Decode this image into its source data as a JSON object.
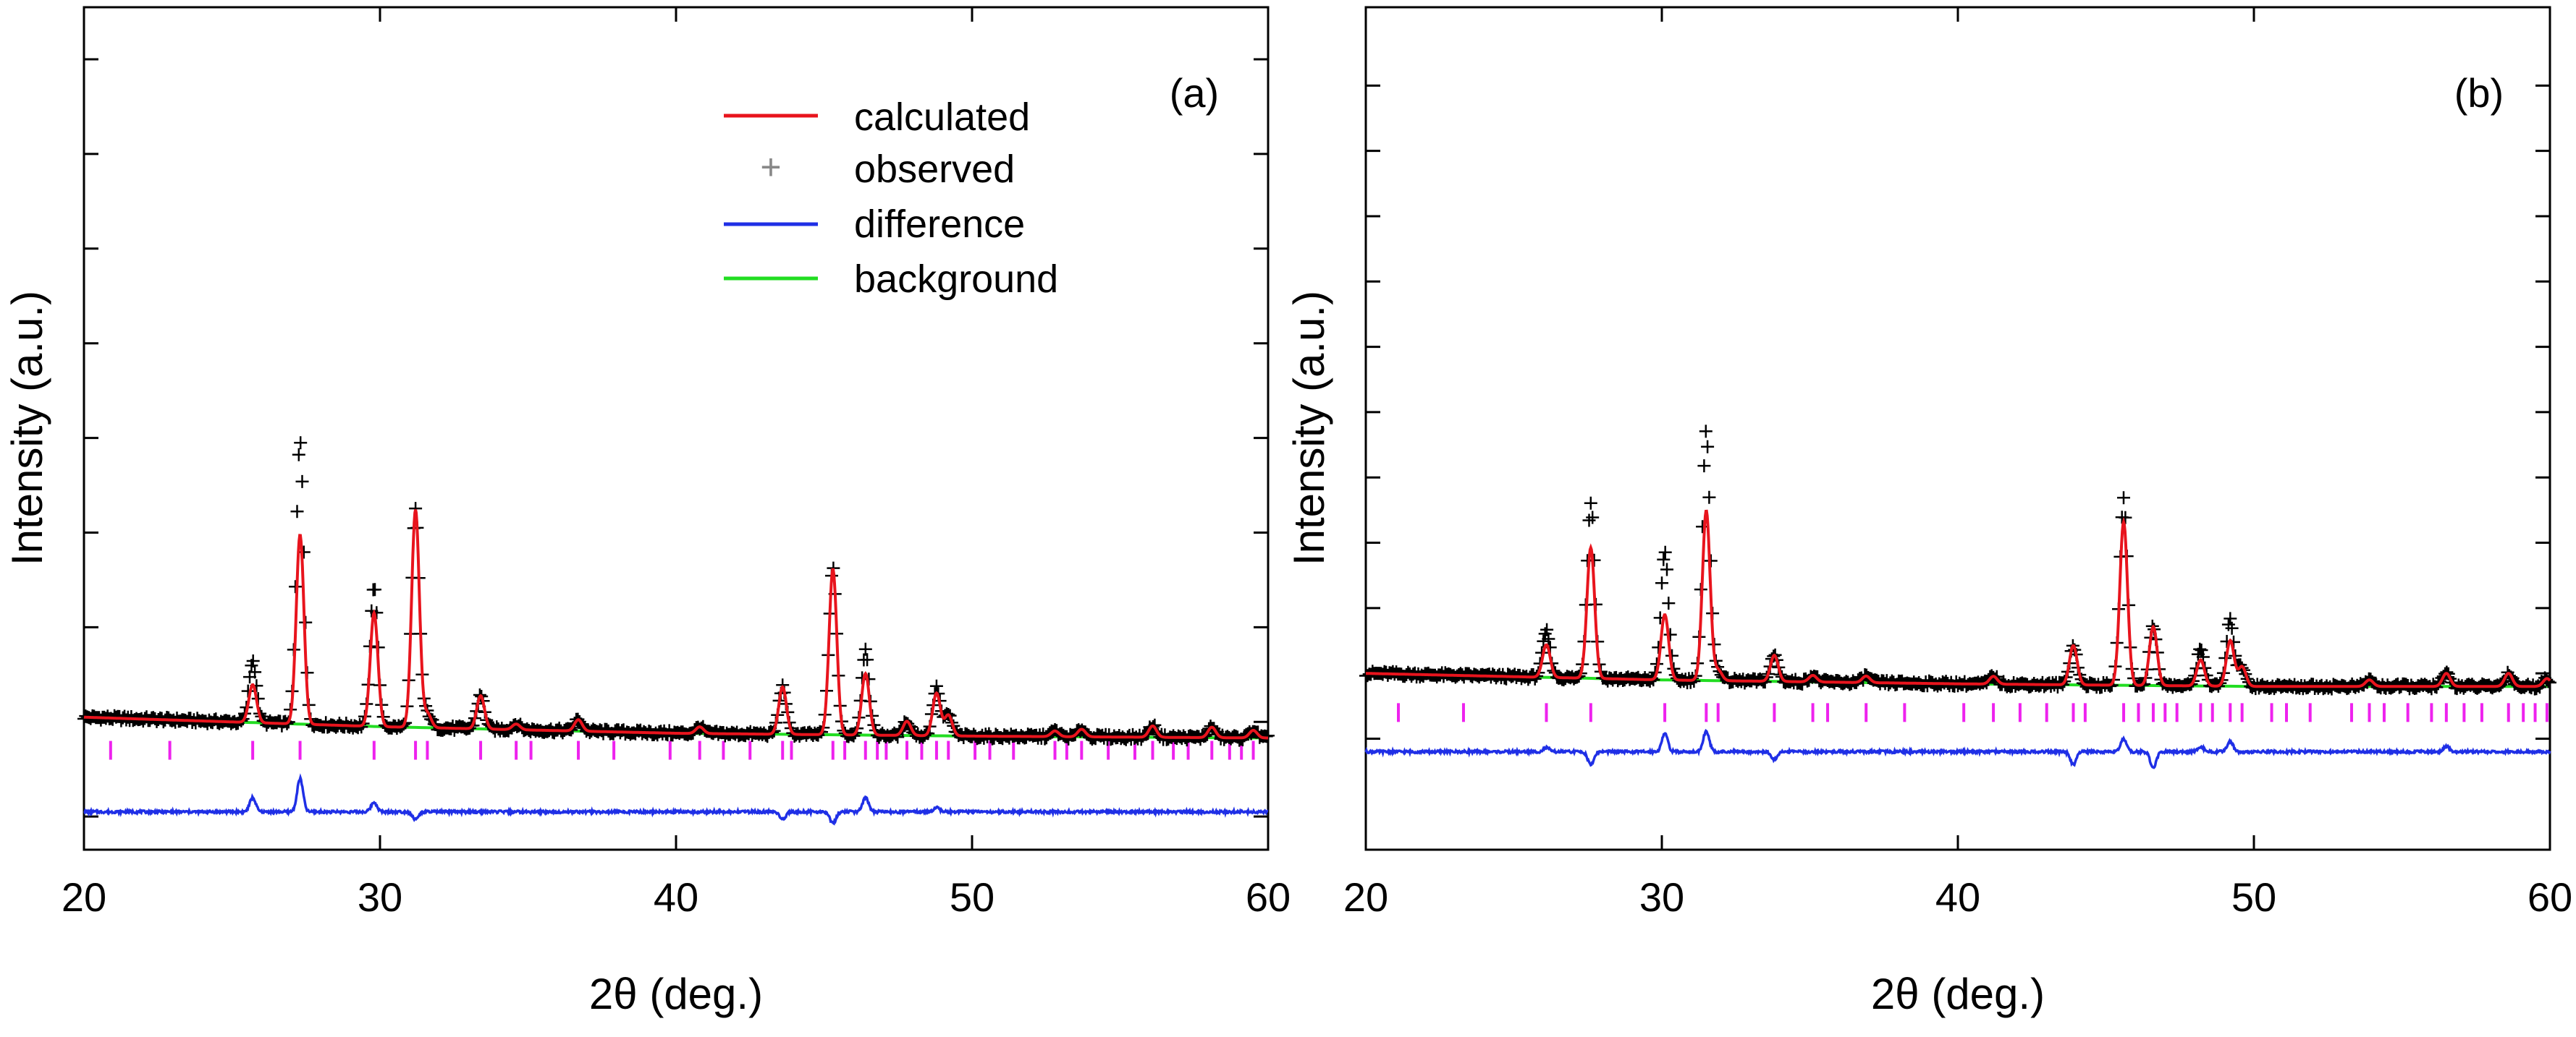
{
  "chart_data": [
    {
      "type": "line",
      "panel_label": "(a)",
      "xlabel": "2θ (deg.)",
      "ylabel": "Intensity (a.u.)",
      "xlim": [
        20,
        60
      ],
      "ylim": [
        -1.35,
        7.55
      ],
      "x_ticks": [
        20,
        30,
        40,
        50,
        60
      ],
      "y_ticks": [
        -1.0,
        0.0,
        1.0,
        2.0,
        3.0,
        4.0,
        5.0,
        6.0,
        7.0
      ],
      "show_y_tick_labels": false,
      "grid": false,
      "legend_position": "top-center",
      "legend": [
        {
          "label": "calculated",
          "color": "#e8141d",
          "style": "line"
        },
        {
          "label": "observed",
          "color": "#000000",
          "style": "plus"
        },
        {
          "label": "difference",
          "color": "#1f2fe6",
          "style": "line"
        },
        {
          "label": "background",
          "color": "#22dd22",
          "style": "line"
        }
      ],
      "background": {
        "x": [
          20,
          30,
          40,
          50,
          60
        ],
        "y": [
          0.05,
          -0.05,
          -0.12,
          -0.15,
          -0.17
        ]
      },
      "series": [
        {
          "name": "calculated",
          "color": "#e8141d",
          "peaks": [
            {
              "x": 25.7,
              "y": 0.4
            },
            {
              "x": 27.3,
              "y": 2.0
            },
            {
              "x": 29.8,
              "y": 1.2
            },
            {
              "x": 31.2,
              "y": 2.3
            },
            {
              "x": 31.6,
              "y": 0.15
            },
            {
              "x": 33.4,
              "y": 0.35
            },
            {
              "x": 34.6,
              "y": 0.06
            },
            {
              "x": 36.7,
              "y": 0.12
            },
            {
              "x": 40.8,
              "y": 0.07
            },
            {
              "x": 43.6,
              "y": 0.5
            },
            {
              "x": 45.3,
              "y": 1.75
            },
            {
              "x": 46.4,
              "y": 0.65
            },
            {
              "x": 47.8,
              "y": 0.15
            },
            {
              "x": 48.8,
              "y": 0.45
            },
            {
              "x": 49.2,
              "y": 0.22
            },
            {
              "x": 52.8,
              "y": 0.06
            },
            {
              "x": 53.7,
              "y": 0.08
            },
            {
              "x": 56.1,
              "y": 0.12
            },
            {
              "x": 58.1,
              "y": 0.11
            },
            {
              "x": 59.5,
              "y": 0.08
            }
          ]
        },
        {
          "name": "observed",
          "color": "#000000",
          "excess": [
            {
              "x": 25.7,
              "y": 0.25
            },
            {
              "x": 27.3,
              "y": 1.0
            },
            {
              "x": 29.8,
              "y": 0.3
            },
            {
              "x": 46.4,
              "y": 0.25
            },
            {
              "x": 48.8,
              "y": 0.05
            }
          ]
        },
        {
          "name": "difference",
          "color": "#1f2fe6",
          "baseline": -0.95,
          "features": [
            {
              "x": 25.7,
              "y": 0.15
            },
            {
              "x": 27.3,
              "y": 0.35
            },
            {
              "x": 29.8,
              "y": 0.1
            },
            {
              "x": 31.2,
              "y": -0.08
            },
            {
              "x": 43.6,
              "y": -0.08
            },
            {
              "x": 45.3,
              "y": -0.12
            },
            {
              "x": 46.4,
              "y": 0.15
            },
            {
              "x": 48.8,
              "y": 0.05
            }
          ]
        }
      ],
      "reflection_marks": {
        "y": -0.3,
        "x": [
          20.9,
          22.9,
          25.7,
          27.3,
          29.8,
          31.2,
          31.6,
          33.4,
          34.6,
          35.1,
          36.7,
          37.9,
          39.8,
          40.8,
          41.6,
          42.5,
          43.6,
          43.9,
          45.3,
          45.7,
          46.4,
          46.8,
          47.1,
          47.8,
          48.3,
          48.8,
          49.2,
          50.1,
          50.6,
          51.4,
          52.8,
          53.2,
          53.7,
          54.6,
          55.5,
          56.1,
          56.8,
          57.3,
          58.1,
          58.7,
          59.1,
          59.5
        ]
      }
    },
    {
      "type": "line",
      "panel_label": "(b)",
      "xlabel": "2θ (deg.)",
      "ylabel": "Intensity (a.u.)",
      "xlim": [
        20,
        60
      ],
      "ylim": [
        -1.35,
        5.1
      ],
      "x_ticks": [
        20,
        30,
        40,
        50,
        60
      ],
      "y_ticks": [
        -0.5,
        0.0,
        0.5,
        1.0,
        1.5,
        2.0,
        2.5,
        3.0,
        3.5,
        4.0,
        4.5
      ],
      "show_y_tick_labels": false,
      "grid": false,
      "background": {
        "x": [
          20,
          30,
          40,
          50,
          60
        ],
        "y": [
          0.0,
          -0.05,
          -0.08,
          -0.1,
          -0.1
        ]
      },
      "series": [
        {
          "name": "calculated",
          "color": "#e8141d",
          "peaks": [
            {
              "x": 26.1,
              "y": 0.25
            },
            {
              "x": 27.6,
              "y": 1.0
            },
            {
              "x": 30.1,
              "y": 0.5
            },
            {
              "x": 31.5,
              "y": 1.3
            },
            {
              "x": 31.9,
              "y": 0.08
            },
            {
              "x": 33.8,
              "y": 0.2
            },
            {
              "x": 35.1,
              "y": 0.05
            },
            {
              "x": 36.9,
              "y": 0.05
            },
            {
              "x": 41.2,
              "y": 0.06
            },
            {
              "x": 43.9,
              "y": 0.3
            },
            {
              "x": 45.6,
              "y": 1.25
            },
            {
              "x": 46.6,
              "y": 0.45
            },
            {
              "x": 48.2,
              "y": 0.2
            },
            {
              "x": 49.2,
              "y": 0.35
            },
            {
              "x": 49.6,
              "y": 0.15
            },
            {
              "x": 53.9,
              "y": 0.05
            },
            {
              "x": 56.5,
              "y": 0.1
            },
            {
              "x": 58.6,
              "y": 0.1
            },
            {
              "x": 59.9,
              "y": 0.06
            }
          ]
        },
        {
          "name": "observed",
          "color": "#000000",
          "excess": [
            {
              "x": 26.1,
              "y": 0.1
            },
            {
              "x": 27.6,
              "y": 0.35
            },
            {
              "x": 30.1,
              "y": 0.48
            },
            {
              "x": 31.5,
              "y": 0.6
            },
            {
              "x": 45.6,
              "y": 0.18
            },
            {
              "x": 48.2,
              "y": 0.08
            },
            {
              "x": 49.2,
              "y": 0.15
            }
          ]
        },
        {
          "name": "difference",
          "color": "#1f2fe6",
          "baseline": -0.6,
          "features": [
            {
              "x": 26.1,
              "y": 0.03
            },
            {
              "x": 27.6,
              "y": -0.1
            },
            {
              "x": 30.1,
              "y": 0.14
            },
            {
              "x": 31.5,
              "y": 0.16
            },
            {
              "x": 33.8,
              "y": -0.06
            },
            {
              "x": 43.9,
              "y": -0.1
            },
            {
              "x": 45.6,
              "y": 0.1
            },
            {
              "x": 46.6,
              "y": -0.12
            },
            {
              "x": 48.2,
              "y": 0.04
            },
            {
              "x": 49.2,
              "y": 0.08
            },
            {
              "x": 56.5,
              "y": 0.04
            }
          ]
        }
      ],
      "reflection_marks": {
        "y": -0.3,
        "x": [
          21.1,
          23.3,
          26.1,
          27.6,
          30.1,
          31.5,
          31.9,
          33.8,
          35.1,
          35.6,
          36.9,
          38.2,
          40.2,
          41.2,
          42.1,
          43.0,
          43.9,
          44.3,
          45.6,
          46.1,
          46.6,
          47.0,
          47.4,
          48.2,
          48.6,
          49.2,
          49.6,
          50.6,
          51.1,
          51.9,
          53.3,
          53.9,
          54.4,
          55.2,
          56.0,
          56.5,
          57.1,
          57.7,
          58.6,
          59.1,
          59.5,
          59.9
        ]
      }
    }
  ]
}
